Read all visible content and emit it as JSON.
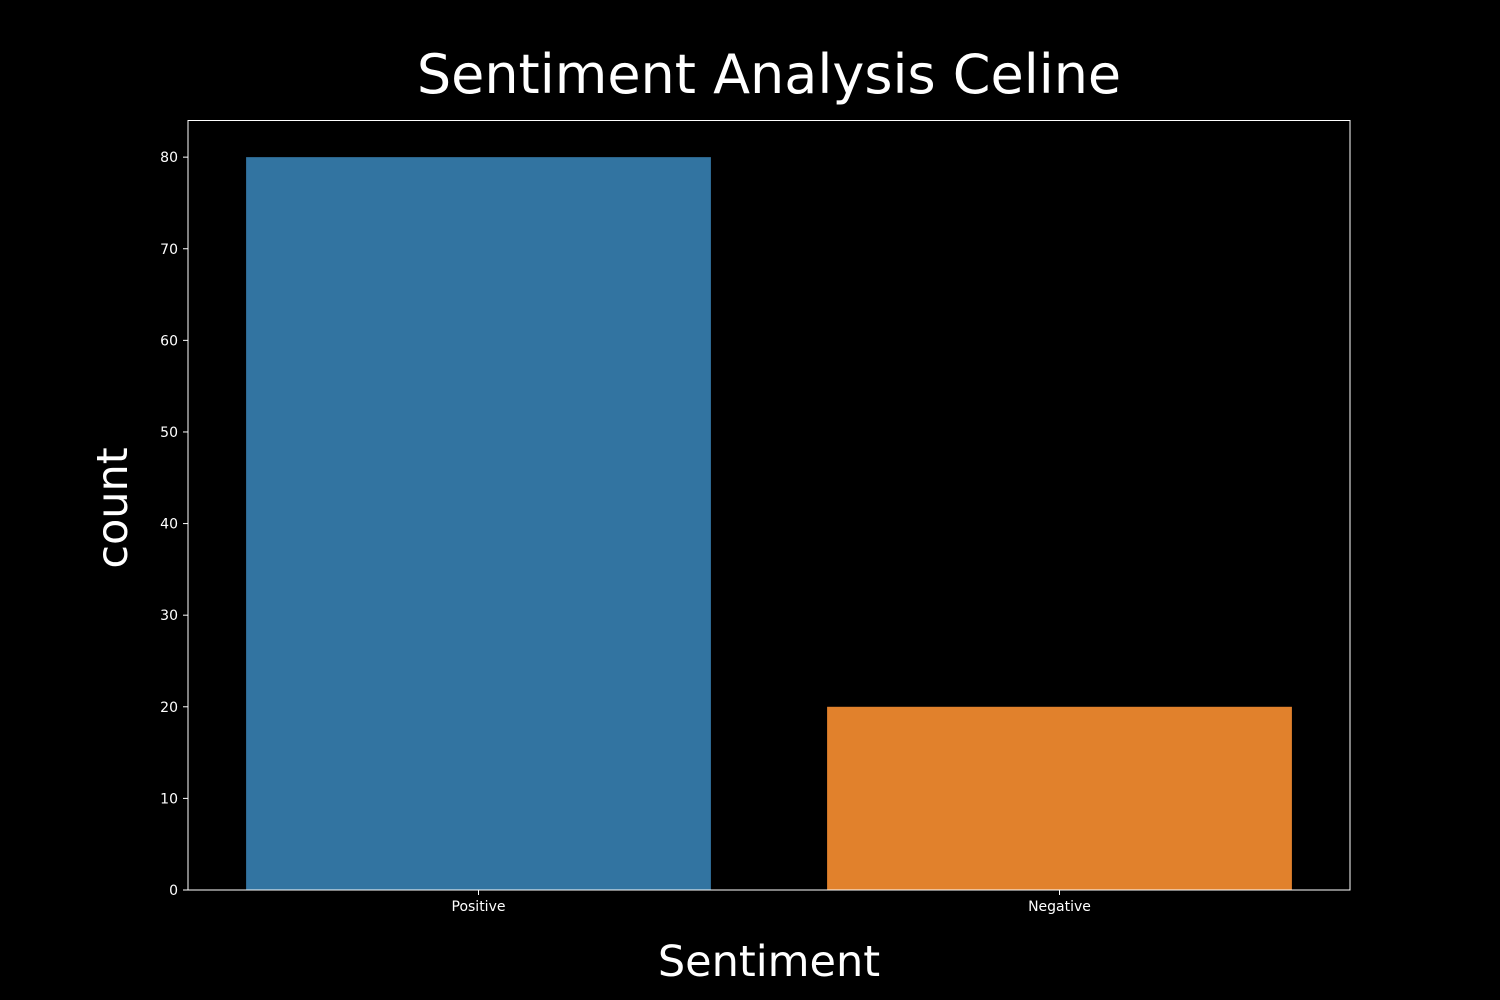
{
  "chart_data": {
    "type": "bar",
    "title": "Sentiment Analysis Celine",
    "xlabel": "Sentiment",
    "ylabel": "count",
    "categories": [
      "Positive",
      "Negative"
    ],
    "values": [
      80,
      20
    ],
    "colors": [
      "#3274a1",
      "#e1812c"
    ],
    "ylim": [
      0,
      84
    ],
    "yticks": [
      0,
      10,
      20,
      30,
      40,
      50,
      60,
      70,
      80
    ],
    "grid": false,
    "background": "#000000",
    "foreground": "#ffffff"
  }
}
